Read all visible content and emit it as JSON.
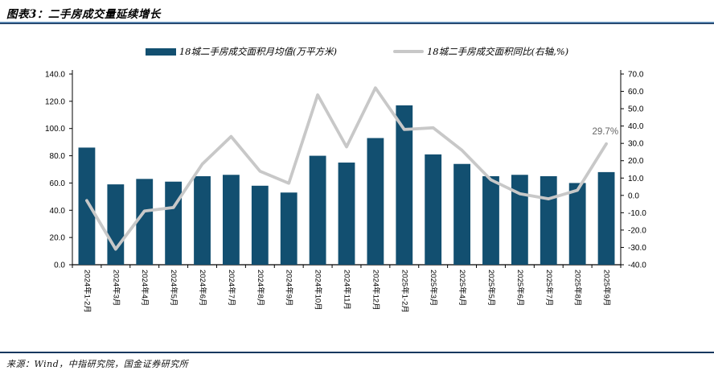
{
  "page": {
    "title": "图表3：二手房成交量延续增长",
    "source": "来源：Wind，中指研究院，国金证券研究所"
  },
  "legend": {
    "items": [
      {
        "label": "18城二手房成交面积月均值(万平方米)",
        "swatch": "bar"
      },
      {
        "label": "18城二手房成交面积同比(右轴,%)",
        "swatch": "line"
      }
    ]
  },
  "colors": {
    "bar": "#124F70",
    "line": "#C8C8C8",
    "axis": "#000000",
    "tick_label": "#000000",
    "annotation": "#666666",
    "rule_dark": "#17375E",
    "rule_light": "#6F9CC6"
  },
  "chart_data": {
    "type": "combo-bar-line",
    "title": "图表3：二手房成交量延续增长",
    "categories": [
      "2024年1-2月",
      "2024年3月",
      "2024年4月",
      "2024年5月",
      "2024年6月",
      "2024年7月",
      "2024年8月",
      "2024年9月",
      "2024年10月",
      "2024年11月",
      "2024年12月",
      "2025年1-2月",
      "2025年3月",
      "2025年4月",
      "2025年5月",
      "2025年6月",
      "2025年7月",
      "2025年8月",
      "2025年9月"
    ],
    "series": [
      {
        "name": "18城二手房成交面积月均值(万平方米)",
        "type": "bar",
        "axis": "left",
        "values": [
          86,
          59,
          63,
          61,
          65,
          66,
          58,
          53,
          80,
          75,
          93,
          117,
          81,
          74,
          65,
          66,
          65,
          60,
          68
        ]
      },
      {
        "name": "18城二手房成交面积同比(右轴,%)",
        "type": "line",
        "axis": "right",
        "values": [
          -3,
          -31,
          -9,
          -7,
          18,
          34,
          14,
          7,
          58,
          28,
          62,
          38,
          39,
          26,
          9,
          1,
          -2,
          3,
          29.7
        ]
      }
    ],
    "left_axis": {
      "min": 0,
      "max": 140,
      "step": 20,
      "tick_labels": [
        "0.0",
        "20.0",
        "40.0",
        "60.0",
        "80.0",
        "100.0",
        "120.0",
        "140.0"
      ]
    },
    "right_axis": {
      "min": -40,
      "max": 70,
      "step": 10,
      "tick_labels": [
        "-40.0",
        "-30.0",
        "-20.0",
        "-10.0",
        "0.0",
        "10.0",
        "20.0",
        "30.0",
        "40.0",
        "50.0",
        "60.0",
        "70.0"
      ]
    },
    "annotation": {
      "text": "29.7%",
      "category_index": 18
    },
    "grid": false,
    "legend_position": "top"
  }
}
